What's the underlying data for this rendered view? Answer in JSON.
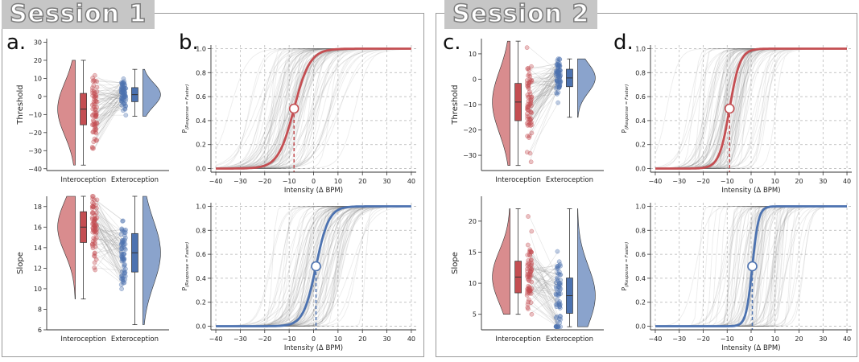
{
  "sessions": [
    {
      "title": "Session 1",
      "violin_panel_letter": "a.",
      "curve_panel_letter": "b.",
      "threshold_median": {
        "interoception": -7,
        "exteroception": 1
      },
      "slope_median": {
        "interoception": 16,
        "exteroception": 13.5
      },
      "curves": [
        {
          "metric": "Threshold",
          "color": "#c44e52",
          "threshold": -8,
          "slope": 15
        },
        {
          "metric": "Slope",
          "color": "#4c72b0",
          "threshold": 1,
          "slope": 12
        }
      ]
    },
    {
      "title": "Session 2",
      "violin_panel_letter": "c.",
      "curve_panel_letter": "d.",
      "threshold_median": {
        "interoception": -9,
        "exteroception": 0.5
      },
      "slope_median": {
        "interoception": 11,
        "exteroception": 8
      },
      "curves": [
        {
          "metric": "Threshold",
          "color": "#c44e52",
          "threshold": -9,
          "slope": 10
        },
        {
          "metric": "Slope",
          "color": "#4c72b0",
          "threshold": 0.5,
          "slope": 6
        }
      ]
    }
  ],
  "violin_x_labels": [
    "Interoception",
    "Exteroception"
  ],
  "colors": {
    "interoception": "#c44e52",
    "exteroception": "#4c72b0",
    "grid": "#b0b0b0"
  },
  "chart_data": [
    {
      "type": "violin",
      "panel": "a.",
      "ylabel": "Threshold",
      "categories": [
        "Interoception",
        "Exteroception"
      ],
      "ylim": [
        -41,
        32
      ],
      "yticks": [
        -40,
        -30,
        -20,
        -10,
        0,
        10,
        20,
        30
      ],
      "range": {
        "Interoception": [
          -38,
          20
        ],
        "Exteroception": [
          -11,
          15
        ]
      }
    },
    {
      "type": "violin",
      "panel": "a.",
      "ylabel": "Slope",
      "categories": [
        "Interoception",
        "Exteroception"
      ],
      "ylim": [
        6,
        19
      ],
      "yticks": [
        6,
        8,
        10,
        12,
        14,
        16,
        18
      ],
      "range": {
        "Interoception": [
          9,
          19
        ],
        "Exteroception": [
          6.5,
          19
        ]
      }
    },
    {
      "type": "line",
      "panel": "b.",
      "xlabel": "Intensity (Δ BPM)",
      "ylabel": "P(Response = Faster)",
      "xlim": [
        -42,
        42
      ],
      "ylim": [
        -0.03,
        1.03
      ],
      "xticks": [
        -40,
        -30,
        -20,
        -10,
        0,
        10,
        20,
        30,
        40
      ],
      "yticks": [
        0.0,
        0.2,
        0.4,
        0.6,
        0.8,
        1.0
      ],
      "series": [
        {
          "threshold": -8,
          "slope": 15
        }
      ]
    },
    {
      "type": "line",
      "panel": "b.",
      "xlabel": "Intensity (Δ BPM)",
      "ylabel": "P(Response = Faster)",
      "xlim": [
        -42,
        42
      ],
      "ylim": [
        -0.03,
        1.03
      ],
      "xticks": [
        -40,
        -30,
        -20,
        -10,
        0,
        10,
        20,
        30,
        40
      ],
      "yticks": [
        0.0,
        0.2,
        0.4,
        0.6,
        0.8,
        1.0
      ],
      "series": [
        {
          "threshold": 1,
          "slope": 12
        }
      ]
    },
    {
      "type": "violin",
      "panel": "c.",
      "ylabel": "Threshold",
      "categories": [
        "Interoception",
        "Exteroception"
      ],
      "ylim": [
        -36,
        16
      ],
      "yticks": [
        -30,
        -20,
        -10,
        0,
        10
      ],
      "range": {
        "Interoception": [
          -34,
          15
        ],
        "Exteroception": [
          -15,
          8
        ]
      }
    },
    {
      "type": "violin",
      "panel": "c.",
      "ylabel": "Slope",
      "categories": [
        "Interoception",
        "Exteroception"
      ],
      "ylim": [
        2.5,
        24
      ],
      "yticks": [
        5,
        10,
        15,
        20
      ],
      "range": {
        "Interoception": [
          5,
          22
        ],
        "Exteroception": [
          3,
          22
        ]
      }
    },
    {
      "type": "line",
      "panel": "d.",
      "xlabel": "Intensity (Δ BPM)",
      "ylabel": "P(Response = Faster)",
      "xlim": [
        -42,
        42
      ],
      "ylim": [
        -0.03,
        1.03
      ],
      "xticks": [
        -40,
        -30,
        -20,
        -10,
        0,
        10,
        20,
        30,
        40
      ],
      "yticks": [
        0.0,
        0.2,
        0.4,
        0.6,
        0.8,
        1.0
      ],
      "series": [
        {
          "threshold": -9,
          "slope": 10
        }
      ]
    },
    {
      "type": "line",
      "panel": "d.",
      "xlabel": "Intensity (Δ BPM)",
      "ylabel": "P(Response = Faster)",
      "xlim": [
        -42,
        42
      ],
      "ylim": [
        -0.03,
        1.03
      ],
      "xticks": [
        -40,
        -30,
        -20,
        -10,
        0,
        10,
        20,
        30,
        40
      ],
      "yticks": [
        0.0,
        0.2,
        0.4,
        0.6,
        0.8,
        1.0
      ],
      "series": [
        {
          "threshold": 0.5,
          "slope": 6
        }
      ]
    }
  ]
}
